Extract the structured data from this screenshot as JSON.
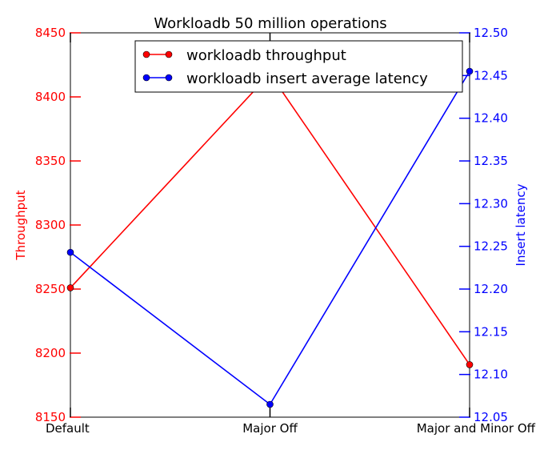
{
  "chart_data": {
    "type": "line",
    "title": "Workloadb 50 million operations",
    "categories": [
      "Default",
      "Major Off",
      "Major and Minor Off"
    ],
    "left_axis": {
      "label": "Throughput",
      "color": "#ff0000",
      "ylim": [
        8150,
        8450
      ],
      "ticks": [
        8150,
        8200,
        8250,
        8300,
        8350,
        8400,
        8450
      ]
    },
    "right_axis": {
      "label": "Insert latency",
      "color": "#0000ff",
      "ylim": [
        12.05,
        12.5
      ],
      "ticks": [
        "12.05",
        "12.10",
        "12.15",
        "12.20",
        "12.25",
        "12.30",
        "12.35",
        "12.40",
        "12.45",
        "12.50"
      ]
    },
    "series": [
      {
        "name": "workloadb throughput",
        "axis": "left",
        "color": "#ff0000",
        "values": [
          8251,
          8418,
          8191
        ]
      },
      {
        "name": "workloadb insert average latency",
        "axis": "right",
        "color": "#0000ff",
        "values": [
          12.243,
          12.065,
          12.455
        ]
      }
    ],
    "legend": "top-center",
    "grid": false
  }
}
